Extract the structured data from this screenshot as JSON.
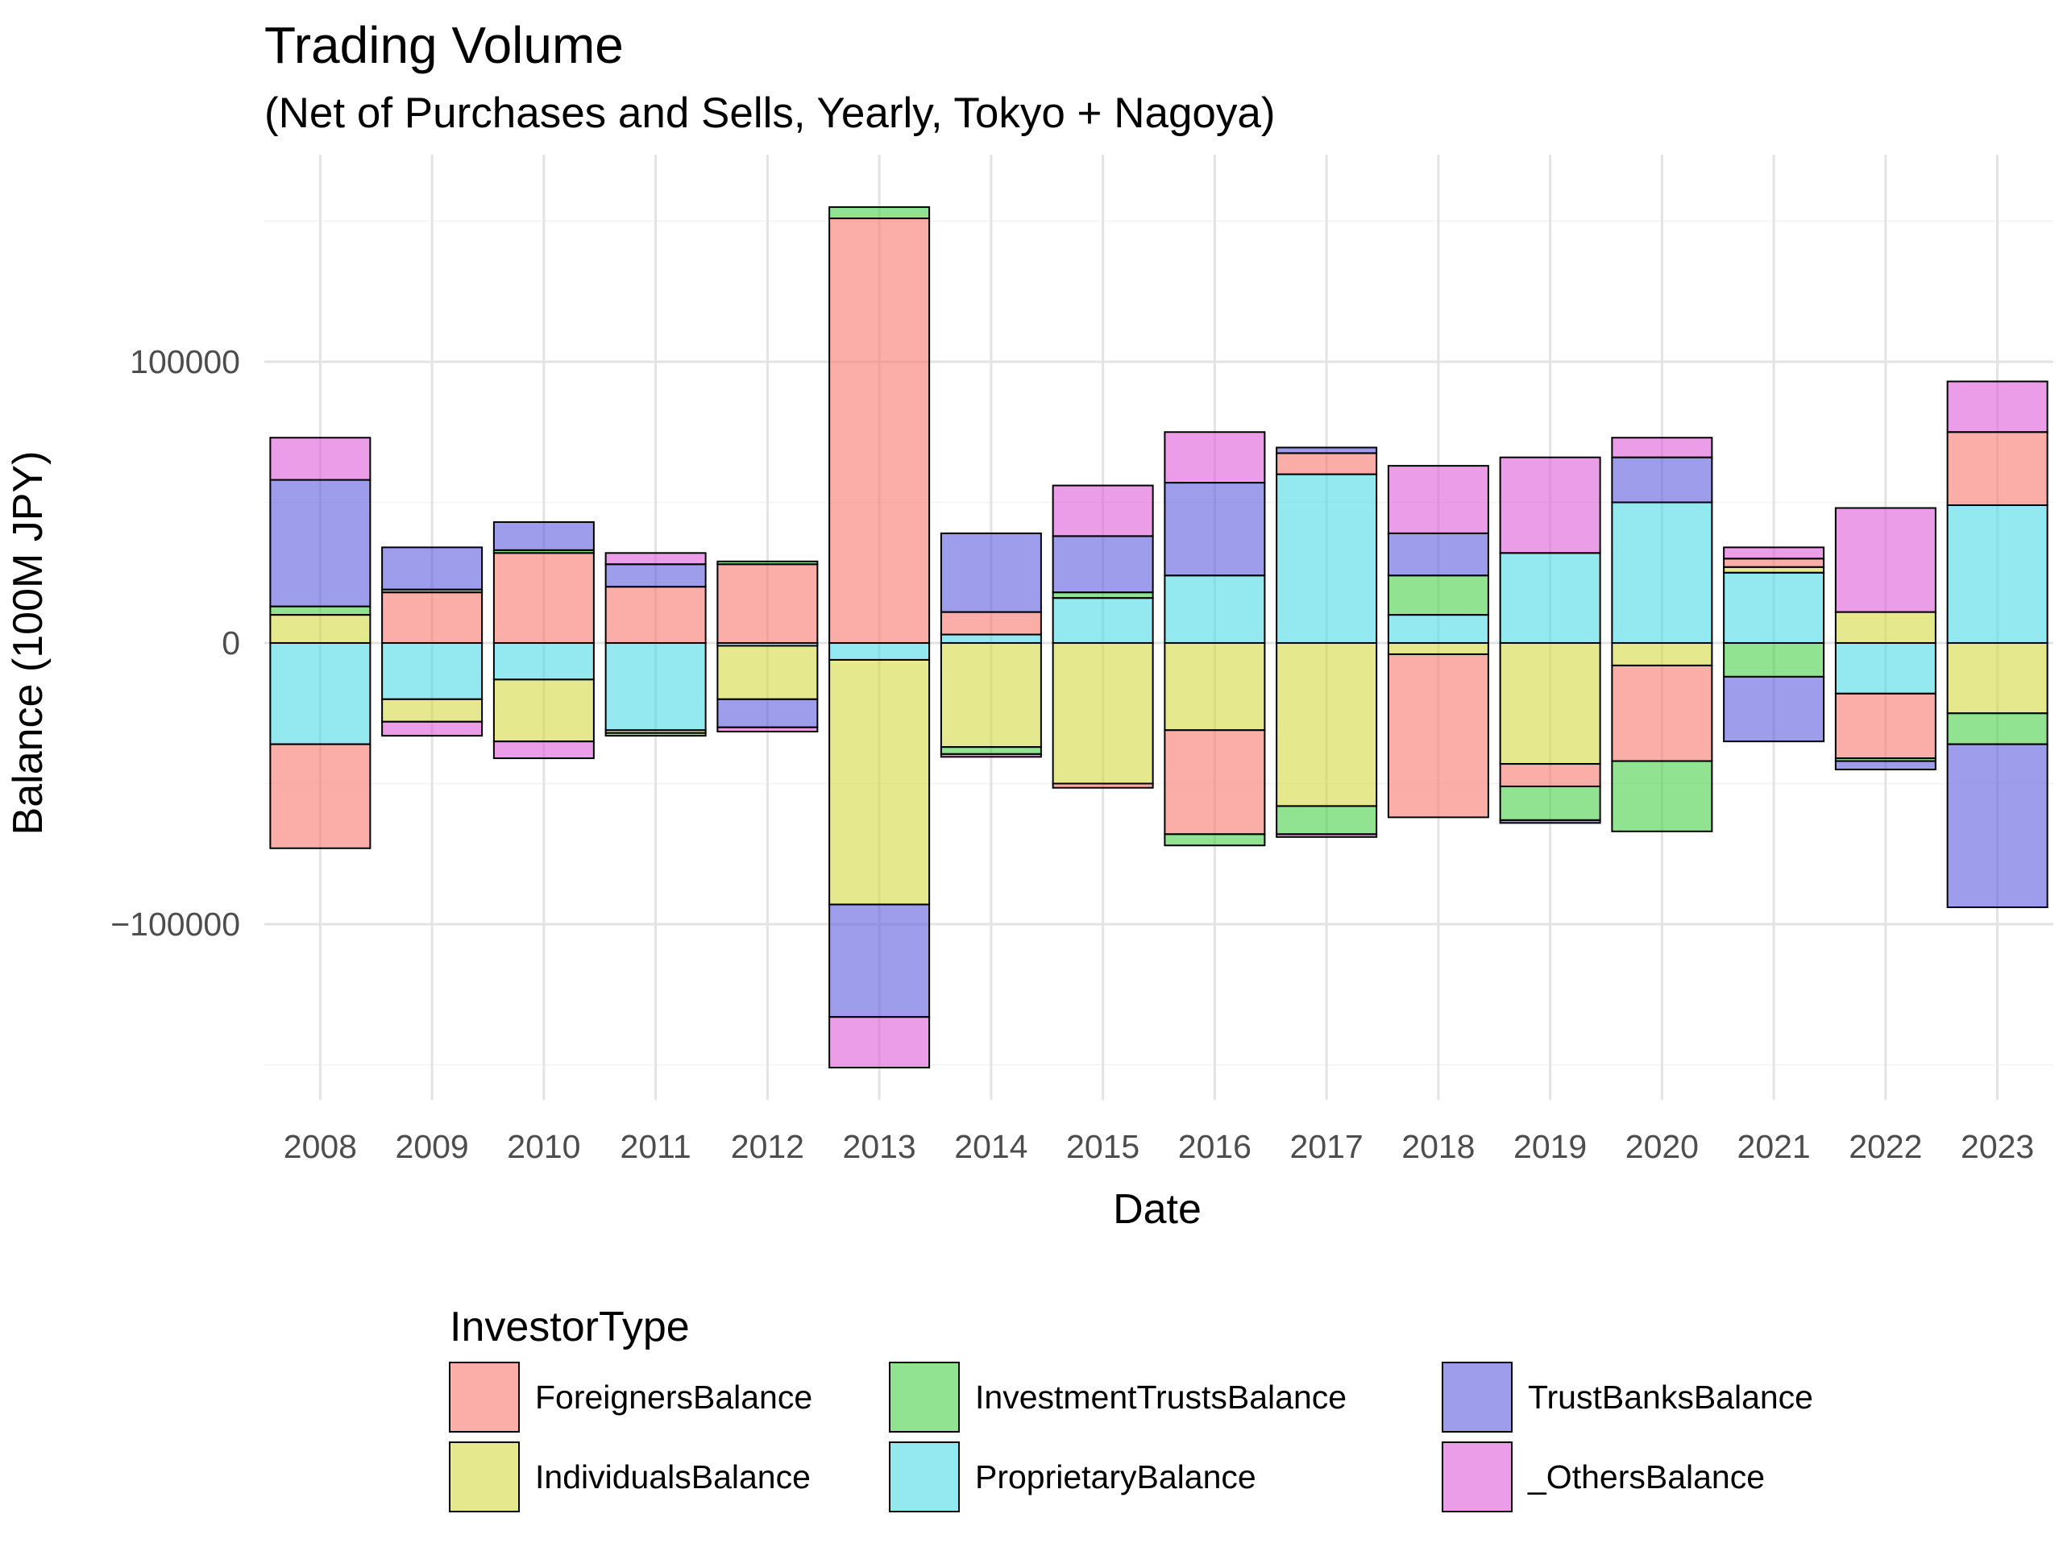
{
  "chart_data": {
    "type": "bar",
    "stacked": true,
    "title": "Trading Volume",
    "subtitle": "(Net of Purchases and Sells, Yearly, Tokyo + Nagoya)",
    "xlabel": "Date",
    "ylabel": "Balance (100M JPY)",
    "ylim": [
      -165000,
      162000
    ],
    "yticks": [
      -100000,
      0,
      100000
    ],
    "ytick_labels": [
      "−100000",
      "0",
      "100000"
    ],
    "grid": true,
    "legend_title": "InvestorType",
    "legend_position": "bottom",
    "categories": [
      "2008",
      "2009",
      "2010",
      "2011",
      "2012",
      "2013",
      "2014",
      "2015",
      "2016",
      "2017",
      "2018",
      "2019",
      "2020",
      "2021",
      "2022",
      "2023"
    ],
    "stack_order": [
      "ProprietaryBalance",
      "IndividualsBalance",
      "ForeignersBalance",
      "InvestmentTrustsBalance",
      "TrustBanksBalance",
      "_OthersBalance"
    ],
    "series": [
      {
        "name": "ForeignersBalance",
        "color": "#F8766D",
        "values": [
          -37000,
          18000,
          32000,
          20000,
          28000,
          151000,
          8000,
          -1500,
          -37000,
          7500,
          -58000,
          -8000,
          -34000,
          3000,
          -23000,
          26000
        ]
      },
      {
        "name": "IndividualsBalance",
        "color": "#D4D93F",
        "values": [
          10000,
          -8000,
          -22000,
          -1000,
          -19000,
          -87000,
          -37000,
          -50000,
          -31000,
          -58000,
          -4000,
          -43000,
          -8000,
          2000,
          11000,
          -25000
        ]
      },
      {
        "name": "InvestmentTrustsBalance",
        "color": "#47D147",
        "values": [
          3000,
          1000,
          1000,
          -1000,
          1000,
          4000,
          -2500,
          2000,
          -4000,
          -10000,
          14000,
          -12000,
          -25000,
          -12000,
          -1000,
          -11000
        ]
      },
      {
        "name": "ProprietaryBalance",
        "color": "#4DD9E6",
        "values": [
          -36000,
          -20000,
          -13000,
          -31000,
          -1000,
          -6000,
          3000,
          16000,
          24000,
          60000,
          10000,
          32000,
          50000,
          25000,
          -18000,
          49000
        ]
      },
      {
        "name": "TrustBanksBalance",
        "color": "#5B5BE0",
        "values": [
          45000,
          15000,
          10000,
          8000,
          -10000,
          -40000,
          28000,
          20000,
          33000,
          2000,
          15000,
          -1000,
          16000,
          -23000,
          -3000,
          -58000
        ]
      },
      {
        "name": "_OthersBalance",
        "color": "#E05BD9",
        "values": [
          15000,
          -5000,
          -6000,
          4000,
          -1500,
          -18000,
          -1000,
          18000,
          18000,
          -1000,
          24000,
          34000,
          7000,
          4000,
          37000,
          18000
        ]
      }
    ]
  }
}
